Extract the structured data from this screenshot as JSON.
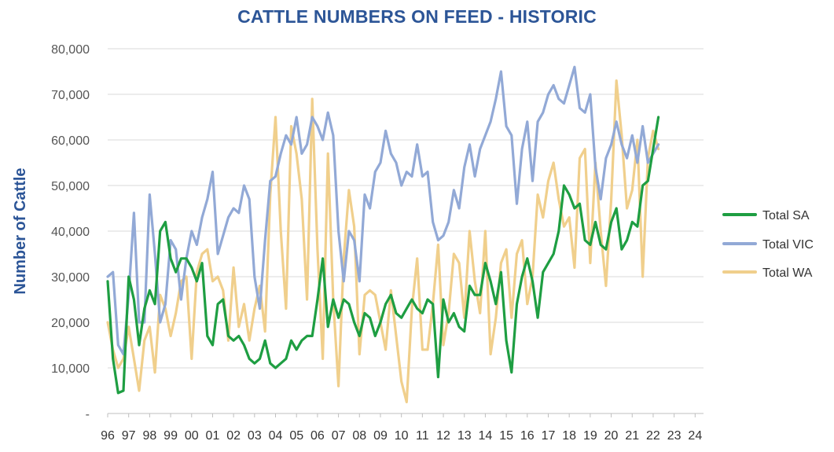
{
  "chart_data": {
    "type": "line",
    "title": "CATTLE NUMBERS ON FEED - HISTORIC",
    "xlabel": "",
    "ylabel": "Number of Cattle",
    "ylim": [
      0,
      80000
    ],
    "yticks": [
      "-",
      "10,000",
      "20,000",
      "30,000",
      "40,000",
      "50,000",
      "60,000",
      "70,000",
      "80,000"
    ],
    "xticks": [
      "96",
      "97",
      "98",
      "99",
      "00",
      "01",
      "02",
      "03",
      "04",
      "05",
      "06",
      "07",
      "08",
      "09",
      "10",
      "11",
      "12",
      "13",
      "14",
      "15",
      "16",
      "17",
      "18",
      "19",
      "20",
      "21",
      "22",
      "23",
      "24"
    ],
    "grid": "horizontal",
    "legend_position": "right",
    "x_start": 1996.0,
    "step": 0.25,
    "series": [
      {
        "name": "Total SA",
        "color": "#1e9e42",
        "values": [
          29000,
          12000,
          4500,
          5000,
          30000,
          25000,
          15000,
          23000,
          27000,
          24000,
          40000,
          42000,
          34000,
          31000,
          34000,
          34000,
          32000,
          29000,
          33000,
          17000,
          15000,
          24000,
          25000,
          17000,
          16000,
          17000,
          15000,
          12000,
          11000,
          12000,
          16000,
          11000,
          10000,
          11000,
          12000,
          16000,
          14000,
          16000,
          17000,
          17000,
          25000,
          34000,
          19000,
          25000,
          21000,
          25000,
          24000,
          20000,
          17000,
          22000,
          21000,
          17000,
          20000,
          24000,
          26000,
          22000,
          21000,
          23000,
          25000,
          23000,
          22000,
          25000,
          24000,
          8000,
          25000,
          20000,
          22000,
          19000,
          18000,
          28000,
          26000,
          26000,
          33000,
          29000,
          24000,
          31000,
          16000,
          9000,
          24000,
          30000,
          34000,
          29000,
          21000,
          31000,
          33000,
          35000,
          40000,
          50000,
          48000,
          45000,
          46000,
          38000,
          37000,
          42000,
          37000,
          36000,
          42000,
          45000,
          36000,
          38000,
          42000,
          41000,
          50000,
          51000,
          58000,
          65000
        ]
      },
      {
        "name": "Total VIC",
        "color": "#92a9d6",
        "values": [
          30000,
          31000,
          15000,
          13000,
          26000,
          44000,
          20000,
          20000,
          48000,
          35000,
          20000,
          24000,
          38000,
          36000,
          25000,
          34000,
          40000,
          37000,
          43000,
          47000,
          53000,
          35000,
          39000,
          43000,
          45000,
          44000,
          50000,
          47000,
          30000,
          23000,
          38000,
          51000,
          52000,
          57000,
          61000,
          59000,
          65000,
          57000,
          59000,
          65000,
          63000,
          60000,
          66000,
          61000,
          40000,
          29000,
          40000,
          38000,
          29000,
          48000,
          45000,
          53000,
          55000,
          62000,
          57000,
          55000,
          50000,
          53000,
          52000,
          59000,
          52000,
          53000,
          42000,
          38000,
          39000,
          42000,
          49000,
          45000,
          54000,
          59000,
          52000,
          58000,
          61000,
          64000,
          69000,
          75000,
          63000,
          61000,
          46000,
          58000,
          64000,
          51000,
          64000,
          66000,
          70000,
          72000,
          69000,
          68000,
          72000,
          76000,
          67000,
          66000,
          70000,
          54000,
          47000,
          56000,
          59000,
          64000,
          59000,
          56000,
          61000,
          55000,
          63000,
          55000,
          57000,
          59000
        ]
      },
      {
        "name": "Total WA",
        "color": "#f0cf8c",
        "values": [
          20000,
          14000,
          10000,
          12000,
          19000,
          12000,
          5000,
          16000,
          19000,
          9000,
          26000,
          23000,
          17000,
          22000,
          29000,
          30000,
          12000,
          31000,
          35000,
          36000,
          29000,
          30000,
          27000,
          16000,
          32000,
          19000,
          24000,
          16000,
          23000,
          28000,
          18000,
          48000,
          65000,
          40000,
          23000,
          63000,
          57000,
          47000,
          25000,
          69000,
          36000,
          12000,
          57000,
          25000,
          6000,
          34000,
          49000,
          41000,
          13000,
          26000,
          27000,
          26000,
          20000,
          14000,
          27000,
          17000,
          7000,
          2500,
          23000,
          34000,
          14000,
          14000,
          24000,
          37000,
          15000,
          22000,
          35000,
          33000,
          21000,
          40000,
          29000,
          22000,
          40000,
          13000,
          21000,
          33000,
          36000,
          21000,
          35000,
          38000,
          24000,
          30000,
          48000,
          43000,
          51000,
          55000,
          47000,
          41000,
          43000,
          32000,
          56000,
          58000,
          33000,
          55000,
          40000,
          28000,
          47000,
          73000,
          61000,
          45000,
          49000,
          60000,
          30000,
          56000,
          62000,
          58000
        ]
      }
    ]
  }
}
